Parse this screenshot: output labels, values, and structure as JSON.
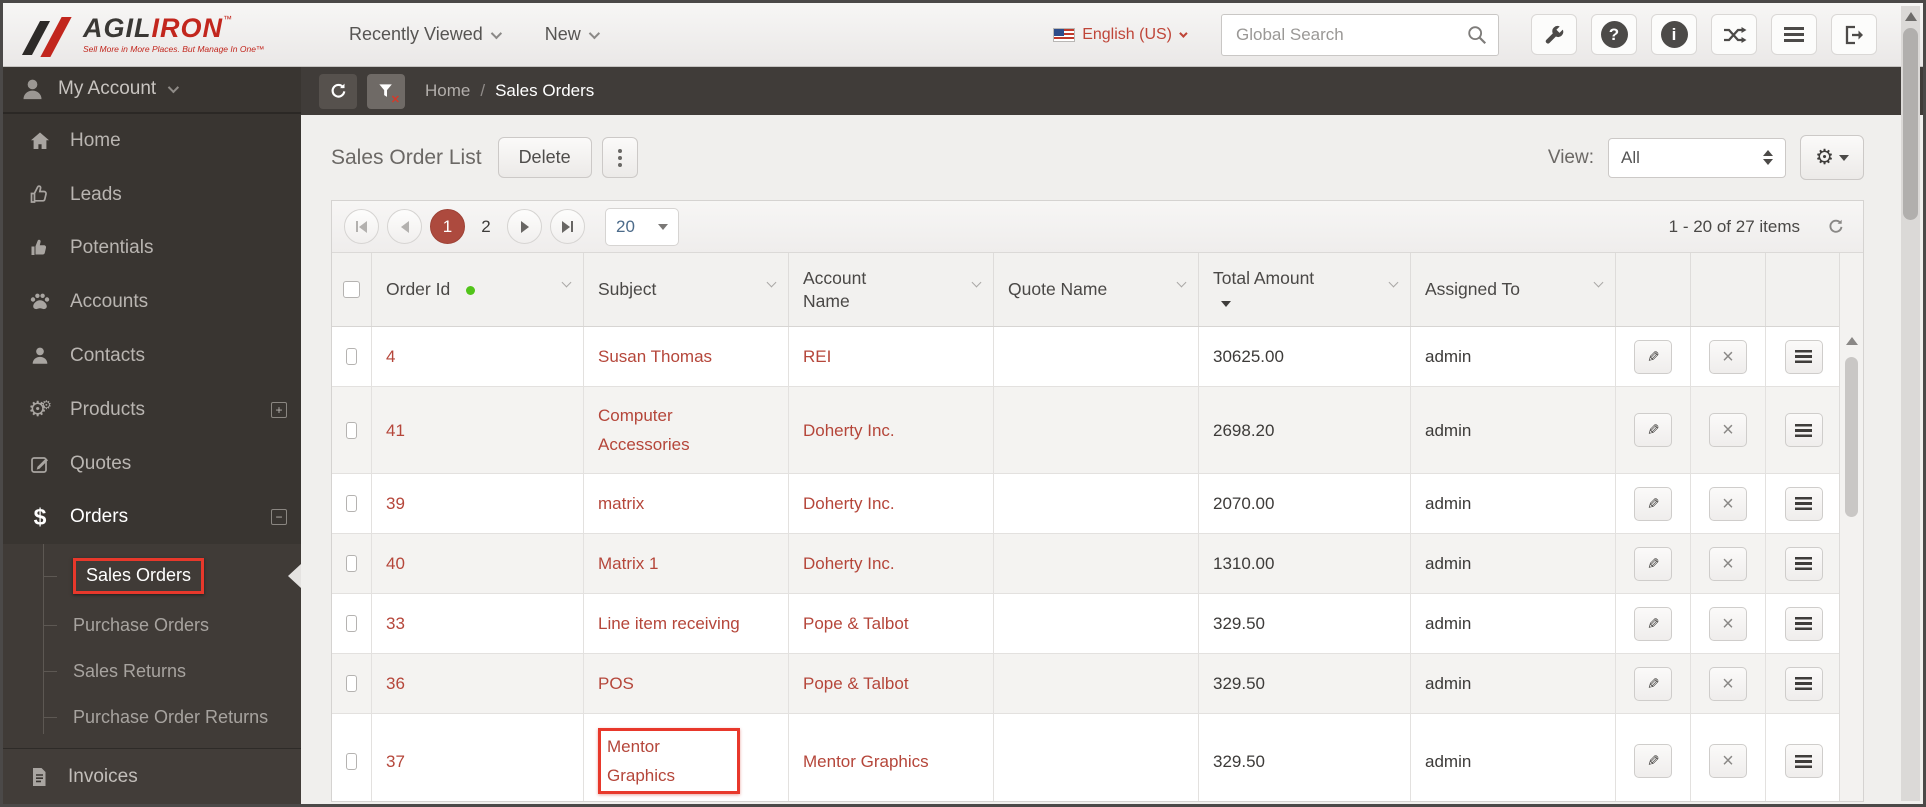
{
  "colors": {
    "annotation_red": "#e8382b",
    "link_red": "#b5463a",
    "brand_red": "#c2261d",
    "active_page_red": "#ad4a3e",
    "status_green_dot": "#52c41a",
    "sidebar_bg": "#393531",
    "breadcrumb_bg": "#403c39"
  },
  "topbar": {
    "brand": {
      "name_left": "AGIL",
      "name_right": "IRON",
      "trademark": "™",
      "tagline": "Sell More in More Places. But Manage In One™"
    },
    "recently_viewed_label": "Recently Viewed",
    "new_label": "New",
    "language_label": "English (US)",
    "search_placeholder": "Global Search",
    "help_glyph": "?",
    "info_glyph": "i"
  },
  "sidebar": {
    "my_account_label": "My Account",
    "items": [
      {
        "label": "Home"
      },
      {
        "label": "Leads"
      },
      {
        "label": "Potentials"
      },
      {
        "label": "Accounts"
      },
      {
        "label": "Contacts"
      },
      {
        "label": "Products",
        "expander": "+"
      },
      {
        "label": "Quotes"
      },
      {
        "label": "Orders",
        "expander": "−",
        "active": true,
        "icon_glyph": "$"
      }
    ],
    "order_sub_items": [
      {
        "label": "Sales Orders",
        "active": true,
        "annotated": true
      },
      {
        "label": "Purchase Orders"
      },
      {
        "label": "Sales Returns"
      },
      {
        "label": "Purchase Order Returns"
      }
    ],
    "invoices_label": "Invoices"
  },
  "breadcrumb": {
    "home": "Home",
    "separator": "/",
    "current": "Sales Orders"
  },
  "toolbar": {
    "title": "Sales Order List",
    "delete_label": "Delete",
    "view_label": "View:",
    "view_selected": "All"
  },
  "pager": {
    "pages": [
      "1",
      "2"
    ],
    "active_page": "1",
    "page_size": "20",
    "range_summary": "1 - 20 of 27 items"
  },
  "table": {
    "columns": [
      {
        "label": "Order Id",
        "green_dot": true
      },
      {
        "label": "Subject"
      },
      {
        "label": "Account Name"
      },
      {
        "label": "Quote Name"
      },
      {
        "label": "Total Amount",
        "sorted_desc": true
      },
      {
        "label": "Assigned To"
      }
    ],
    "rows": [
      {
        "order_id": "4",
        "subject": "Susan Thomas",
        "account_name": "REI",
        "quote_name": "",
        "total_amount": "30625.00",
        "assigned_to": "admin"
      },
      {
        "order_id": "41",
        "subject": "Computer Accessories",
        "account_name": "Doherty Inc.",
        "quote_name": "",
        "total_amount": "2698.20",
        "assigned_to": "admin"
      },
      {
        "order_id": "39",
        "subject": "matrix",
        "account_name": "Doherty Inc.",
        "quote_name": "",
        "total_amount": "2070.00",
        "assigned_to": "admin"
      },
      {
        "order_id": "40",
        "subject": "Matrix 1",
        "account_name": "Doherty Inc.",
        "quote_name": "",
        "total_amount": "1310.00",
        "assigned_to": "admin"
      },
      {
        "order_id": "33",
        "subject": "Line item receiving",
        "account_name": "Pope & Talbot",
        "quote_name": "",
        "total_amount": "329.50",
        "assigned_to": "admin"
      },
      {
        "order_id": "36",
        "subject": "POS",
        "account_name": "Pope & Talbot",
        "quote_name": "",
        "total_amount": "329.50",
        "assigned_to": "admin"
      },
      {
        "order_id": "37",
        "subject": "Mentor Graphics",
        "account_name": "Mentor Graphics",
        "quote_name": "",
        "total_amount": "329.50",
        "assigned_to": "admin",
        "subject_annotated": true
      }
    ]
  }
}
